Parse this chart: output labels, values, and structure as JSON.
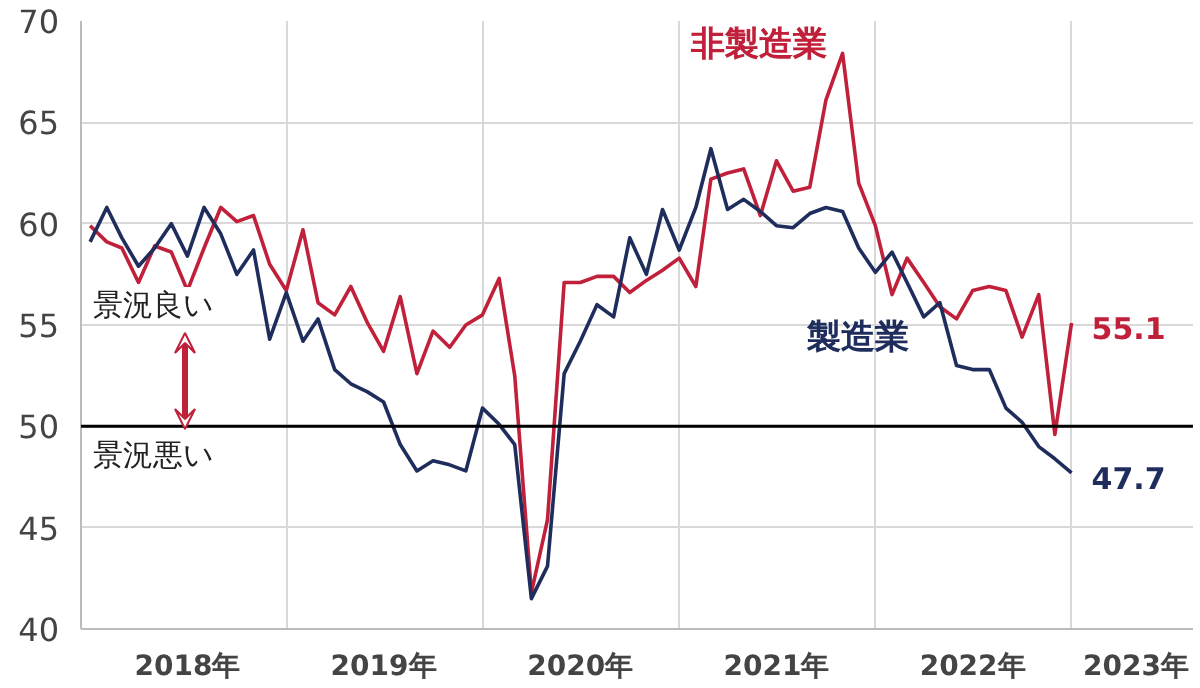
{
  "chart_data": {
    "type": "line",
    "x": [
      "2018-01",
      "2018-02",
      "2018-03",
      "2018-04",
      "2018-05",
      "2018-06",
      "2018-07",
      "2018-08",
      "2018-09",
      "2018-10",
      "2018-11",
      "2018-12",
      "2019-01",
      "2019-02",
      "2019-03",
      "2019-04",
      "2019-05",
      "2019-06",
      "2019-07",
      "2019-08",
      "2019-09",
      "2019-10",
      "2019-11",
      "2019-12",
      "2020-01",
      "2020-02",
      "2020-03",
      "2020-04",
      "2020-05",
      "2020-06",
      "2020-07",
      "2020-08",
      "2020-09",
      "2020-10",
      "2020-11",
      "2020-12",
      "2021-01",
      "2021-02",
      "2021-03",
      "2021-04",
      "2021-05",
      "2021-06",
      "2021-07",
      "2021-08",
      "2021-09",
      "2021-10",
      "2021-11",
      "2021-12",
      "2022-01",
      "2022-02",
      "2022-03",
      "2022-04",
      "2022-05",
      "2022-06",
      "2022-07",
      "2022-08",
      "2022-09",
      "2022-10",
      "2022-11",
      "2022-12",
      "2023-01"
    ],
    "series": [
      {
        "name": "非製造業",
        "color": "#c0203a",
        "values": [
          59.9,
          59.1,
          58.8,
          57.1,
          58.9,
          58.6,
          56.7,
          58.8,
          60.8,
          60.1,
          60.4,
          58.0,
          56.7,
          59.7,
          56.1,
          55.5,
          56.9,
          55.1,
          53.7,
          56.4,
          52.6,
          54.7,
          53.9,
          55.0,
          55.5,
          57.3,
          52.5,
          41.8,
          45.4,
          57.1,
          57.1,
          57.4,
          57.4,
          56.6,
          57.2,
          57.7,
          58.3,
          56.9,
          62.2,
          62.5,
          62.7,
          60.4,
          63.1,
          61.6,
          61.8,
          66.1,
          68.4,
          62.0,
          59.9,
          56.5,
          58.3,
          57.1,
          55.9,
          55.3,
          56.7,
          56.9,
          56.7,
          54.4,
          56.5,
          49.6,
          55.1
        ],
        "value_labels": [
          null,
          null,
          null,
          null,
          null,
          null,
          null,
          null,
          null,
          null,
          null,
          null,
          null,
          null,
          null,
          null,
          null,
          null,
          null,
          null,
          null,
          null,
          null,
          null,
          null,
          null,
          null,
          null,
          null,
          null,
          null,
          null,
          null,
          null,
          null,
          null,
          null,
          null,
          null,
          null,
          null,
          null,
          null,
          null,
          null,
          null,
          null,
          null,
          null,
          null,
          null,
          null,
          null,
          null,
          null,
          null,
          null,
          null,
          null,
          null,
          "55.1"
        ]
      },
      {
        "name": "製造業",
        "color": "#1f2d5c",
        "values": [
          59.1,
          60.8,
          59.3,
          57.9,
          58.8,
          60.0,
          58.4,
          60.8,
          59.5,
          57.5,
          58.7,
          54.3,
          56.6,
          54.2,
          55.3,
          52.8,
          52.1,
          51.7,
          51.2,
          49.1,
          47.8,
          48.3,
          48.1,
          47.8,
          50.9,
          50.1,
          49.1,
          41.5,
          43.1,
          52.6,
          54.2,
          56.0,
          55.4,
          59.3,
          57.5,
          60.7,
          58.7,
          60.8,
          63.7,
          60.7,
          61.2,
          60.6,
          59.9,
          59.8,
          60.5,
          60.8,
          60.6,
          58.8,
          57.6,
          58.6,
          57.1,
          55.4,
          56.1,
          53.0,
          52.8,
          52.8,
          50.9,
          50.2,
          49.0,
          48.4,
          47.7
        ],
        "value_labels": [
          null,
          null,
          null,
          null,
          null,
          null,
          null,
          null,
          null,
          null,
          null,
          null,
          null,
          null,
          null,
          null,
          null,
          null,
          null,
          null,
          null,
          null,
          null,
          null,
          null,
          null,
          null,
          null,
          null,
          null,
          null,
          null,
          null,
          null,
          null,
          null,
          null,
          null,
          null,
          null,
          null,
          null,
          null,
          null,
          null,
          null,
          null,
          null,
          null,
          null,
          null,
          null,
          null,
          null,
          null,
          null,
          null,
          null,
          null,
          null,
          "47.7"
        ]
      }
    ],
    "ylim": [
      40,
      70
    ],
    "yticks": [
      40,
      45,
      50,
      55,
      60,
      65,
      70
    ],
    "xlim": [
      "2017-12-15",
      "2023-08-15"
    ],
    "xticks": [
      {
        "value": "2018-07-01",
        "label": "2018年"
      },
      {
        "value": "2019-01-01",
        "label": null
      },
      {
        "value": "2019-07-01",
        "label": "2019年"
      },
      {
        "value": "2020-01-01",
        "label": null
      },
      {
        "value": "2020-07-01",
        "label": "2020年"
      },
      {
        "value": "2021-01-01",
        "label": null
      },
      {
        "value": "2021-07-01",
        "label": "2021年"
      },
      {
        "value": "2022-01-01",
        "label": null
      },
      {
        "value": "2022-07-01",
        "label": "2022年"
      },
      {
        "value": "2023-01-01",
        "label": null
      },
      {
        "value": "2023-05-01",
        "label": "2023年"
      }
    ],
    "grid": true,
    "ref_lines": [
      {
        "axis": "y",
        "value": 50,
        "label": null,
        "color": "#000000"
      }
    ],
    "annotations": [
      "景況良い",
      "景況悪い"
    ]
  }
}
